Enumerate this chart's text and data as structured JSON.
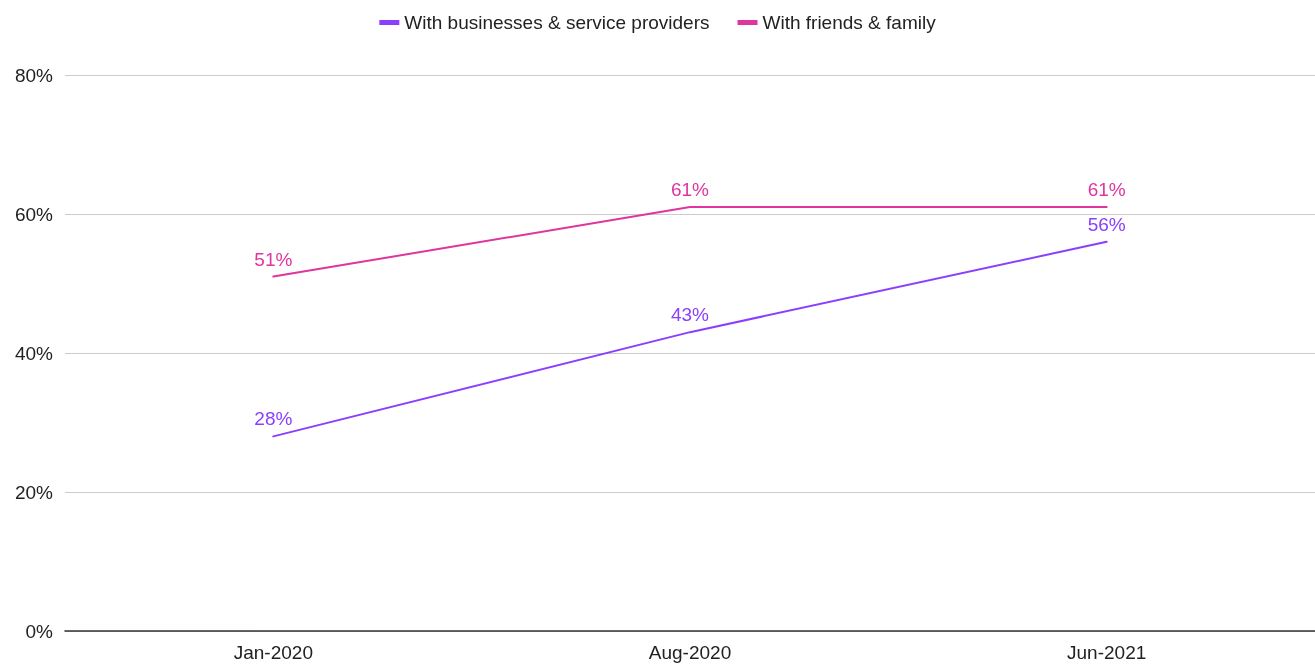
{
  "chart_data": {
    "type": "line",
    "categories": [
      "Jan-2020",
      "Aug-2020",
      "Jun-2021"
    ],
    "series": [
      {
        "name": "With businesses & service providers",
        "color": "#8a3ffc",
        "values": [
          28,
          43,
          56
        ],
        "value_labels": [
          "28%",
          "43%",
          "56%"
        ]
      },
      {
        "name": "With friends & family",
        "color": "#e0359f",
        "values": [
          51,
          61,
          61
        ],
        "value_labels": [
          "51%",
          "61%",
          "61%"
        ]
      }
    ],
    "ylim": [
      0,
      80
    ],
    "yticks": [
      {
        "value": 0,
        "label": "0%"
      },
      {
        "value": 20,
        "label": "20%"
      },
      {
        "value": 40,
        "label": "40%"
      },
      {
        "value": 60,
        "label": "60%"
      },
      {
        "value": 80,
        "label": "80%"
      }
    ],
    "grid": "y",
    "legend": "top",
    "marker": "none",
    "line_style": "solid"
  }
}
